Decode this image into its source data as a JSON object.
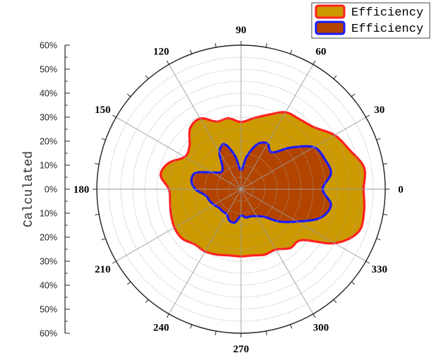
{
  "chart_data": {
    "type": "area",
    "subtype": "polar",
    "ylabel": "Calculated",
    "angle_ticks": [
      "0",
      "30",
      "60",
      "90",
      "120",
      "150",
      "180",
      "210",
      "240",
      "270",
      "300",
      "330"
    ],
    "radial_tick_labels": [
      "60%",
      "50%",
      "40%",
      "30%",
      "20%",
      "10%",
      "0%",
      "10%",
      "20%",
      "30%",
      "40%",
      "50%",
      "60%"
    ],
    "radial_range": [
      0,
      60
    ],
    "grid": true,
    "legend_position": "top-right",
    "series": [
      {
        "name": "Efficiency",
        "fill_color": "#cc9900",
        "line_color": "#ff2020",
        "angles": [
          0,
          10,
          20,
          30,
          40,
          50,
          60,
          70,
          80,
          90,
          100,
          110,
          120,
          130,
          140,
          150,
          160,
          170,
          180,
          190,
          200,
          210,
          220,
          230,
          240,
          250,
          260,
          270,
          280,
          290,
          300,
          310,
          320,
          330,
          340,
          350
        ],
        "values": [
          51,
          52,
          48,
          45,
          40,
          38,
          37,
          33,
          30,
          28,
          30,
          30,
          34,
          33,
          28,
          27,
          32,
          34,
          30,
          30,
          31,
          32,
          32,
          30,
          30,
          29,
          28,
          28,
          28,
          29,
          29,
          32,
          33,
          45,
          52,
          52
        ]
      },
      {
        "name": "Efficiency",
        "fill_color": "#b34400",
        "line_color": "#1a1aff",
        "angles": [
          0,
          10,
          20,
          30,
          40,
          50,
          60,
          70,
          80,
          90,
          100,
          110,
          120,
          130,
          140,
          150,
          160,
          170,
          180,
          190,
          200,
          210,
          220,
          230,
          240,
          250,
          260,
          270,
          280,
          290,
          300,
          310,
          320,
          330,
          340,
          350
        ],
        "values": [
          34,
          38,
          37,
          35,
          27,
          20,
          22,
          20,
          14,
          8,
          14,
          20,
          18,
          12,
          11,
          14,
          20,
          21,
          19,
          15,
          14,
          13,
          12,
          12,
          12,
          14,
          14,
          11,
          12,
          12,
          13,
          15,
          21,
          27,
          35,
          38
        ]
      }
    ]
  }
}
